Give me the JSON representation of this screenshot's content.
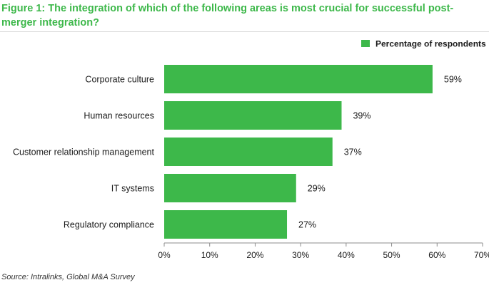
{
  "figure": {
    "title": "Figure 1: The integration of which of the following areas is most crucial for successful post-merger integration?",
    "source": "Source: Intralinks, Global M&A Survey"
  },
  "chart_data": {
    "type": "bar",
    "orientation": "horizontal",
    "categories": [
      "Corporate culture",
      "Human resources",
      "Customer relationship management",
      "IT systems",
      "Regulatory compliance"
    ],
    "series": [
      {
        "name": "Percentage of respondents",
        "values": [
          59,
          39,
          37,
          29,
          27
        ],
        "color": "#3db84a"
      }
    ],
    "data_labels": [
      "59%",
      "39%",
      "37%",
      "29%",
      "27%"
    ],
    "xlim": [
      0,
      70
    ],
    "xticks": [
      0,
      10,
      20,
      30,
      40,
      50,
      60,
      70
    ],
    "xtick_labels": [
      "0%",
      "10%",
      "20%",
      "30%",
      "40%",
      "50%",
      "60%",
      "70%"
    ],
    "grid": false,
    "legend": "top-right"
  }
}
